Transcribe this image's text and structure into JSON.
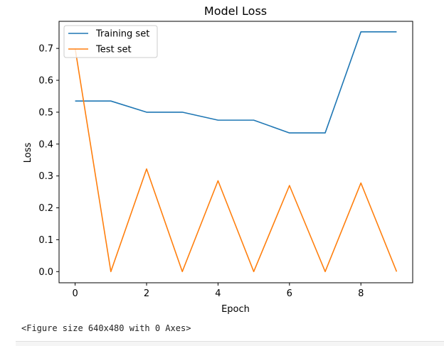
{
  "chart_data": {
    "type": "line",
    "title": "Model Loss",
    "xlabel": "Epoch",
    "ylabel": "Loss",
    "x": [
      0,
      1,
      2,
      3,
      4,
      5,
      6,
      7,
      8,
      9
    ],
    "xticks": [
      0,
      2,
      4,
      6,
      8
    ],
    "yticks": [
      0.0,
      0.1,
      0.2,
      0.3,
      0.4,
      0.5,
      0.6,
      0.7
    ],
    "xlim": [
      -0.45,
      9.45
    ],
    "ylim": [
      -0.035,
      0.785
    ],
    "grid": false,
    "legend_position": "upper-left",
    "series": [
      {
        "name": "Training set",
        "color": "#1f77b4",
        "values": [
          0.535,
          0.535,
          0.5,
          0.5,
          0.475,
          0.475,
          0.435,
          0.435,
          0.752,
          0.752
        ]
      },
      {
        "name": "Test set",
        "color": "#ff7f0e",
        "values": [
          0.7,
          0.0,
          0.322,
          0.0,
          0.285,
          0.0,
          0.27,
          0.0,
          0.278,
          0.0
        ]
      }
    ]
  },
  "output": {
    "text": "<Figure size 640x480 with 0 Axes>"
  }
}
